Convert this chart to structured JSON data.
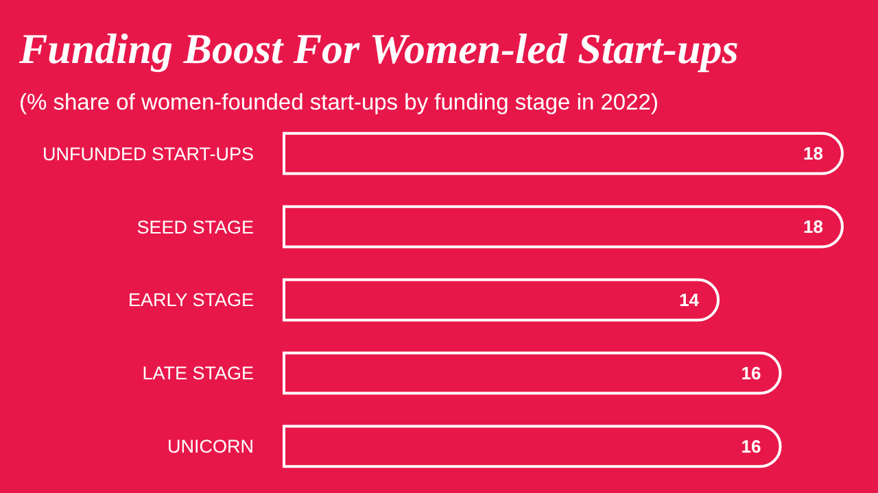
{
  "chart_data": {
    "type": "bar",
    "orientation": "horizontal",
    "title": "Funding Boost For Women-led Start-ups",
    "subtitle": "(% share of women-founded start-ups by funding stage in 2022)",
    "categories": [
      "UNFUNDED START-UPS",
      "SEED STAGE",
      "EARLY STAGE",
      "LATE STAGE",
      "UNICORN"
    ],
    "values": [
      18,
      18,
      14,
      16,
      16
    ],
    "color": "#e8174a",
    "data_labels": true
  }
}
